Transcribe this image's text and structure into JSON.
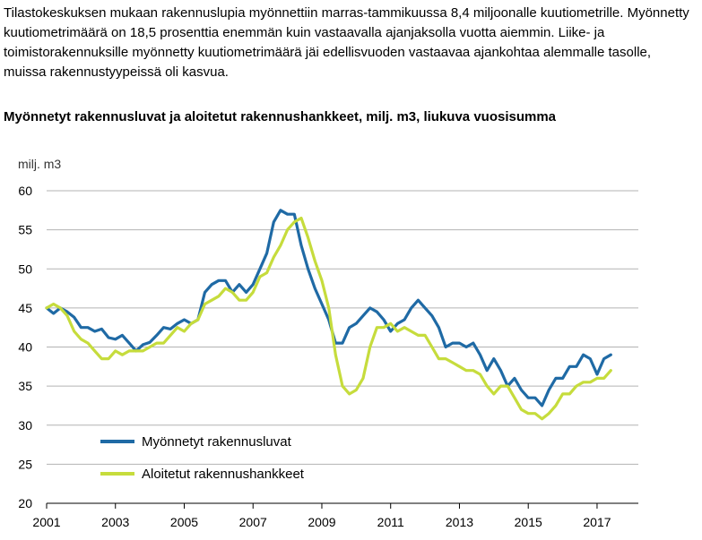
{
  "article": {
    "intro_text": "Tilastokeskuksen mukaan rakennuslupia myönnettiin marras-tammikuussa 8,4 miljoonalle kuutiometrille. Myönnetty kuutiometrimäärä on 18,5 prosenttia enemmän kuin vastaavalla ajanjaksolla vuotta aiemmin. Liike- ja toimistorakennuksille myönnetty kuutiometrimäärä jäi edellisvuoden vastaavaa ajankohtaa alemmalle tasolle, muissa rakennustyypeissä oli kasvua.",
    "chart_heading": "Myönnetyt rakennusluvat ja aloitetut rakennushankkeet, milj. m3, liukuva vuosisumma"
  },
  "chart_data": {
    "type": "line",
    "unit_label": "milj. m3",
    "ylim": [
      20,
      60
    ],
    "yticks": [
      20,
      25,
      30,
      35,
      40,
      45,
      50,
      55,
      60
    ],
    "xlim": [
      2001,
      2018.2
    ],
    "xticks": [
      "2001",
      "2003",
      "2005",
      "2007",
      "2009",
      "2011",
      "2013",
      "2015",
      "2017"
    ],
    "grid": "horizontal",
    "legend_position": "bottom-left",
    "series": [
      {
        "name": "Myönnetyt rakennusluvat",
        "color": "#1f6aa5",
        "points": [
          [
            2001.0,
            45.0
          ],
          [
            2001.2,
            44.3
          ],
          [
            2001.4,
            45.0
          ],
          [
            2001.6,
            44.5
          ],
          [
            2001.8,
            43.8
          ],
          [
            2002.0,
            42.5
          ],
          [
            2002.2,
            42.5
          ],
          [
            2002.4,
            42.0
          ],
          [
            2002.6,
            42.3
          ],
          [
            2002.8,
            41.2
          ],
          [
            2003.0,
            41.0
          ],
          [
            2003.2,
            41.5
          ],
          [
            2003.4,
            40.5
          ],
          [
            2003.6,
            39.5
          ],
          [
            2003.8,
            40.3
          ],
          [
            2004.0,
            40.6
          ],
          [
            2004.2,
            41.5
          ],
          [
            2004.4,
            42.5
          ],
          [
            2004.6,
            42.3
          ],
          [
            2004.8,
            43.0
          ],
          [
            2005.0,
            43.5
          ],
          [
            2005.2,
            43.0
          ],
          [
            2005.4,
            43.5
          ],
          [
            2005.6,
            47.0
          ],
          [
            2005.8,
            48.0
          ],
          [
            2006.0,
            48.5
          ],
          [
            2006.2,
            48.5
          ],
          [
            2006.4,
            47.0
          ],
          [
            2006.6,
            48.0
          ],
          [
            2006.8,
            47.0
          ],
          [
            2007.0,
            48.0
          ],
          [
            2007.2,
            50.0
          ],
          [
            2007.4,
            52.0
          ],
          [
            2007.6,
            56.0
          ],
          [
            2007.8,
            57.5
          ],
          [
            2008.0,
            57.0
          ],
          [
            2008.2,
            57.0
          ],
          [
            2008.4,
            53.0
          ],
          [
            2008.6,
            50.0
          ],
          [
            2008.8,
            47.5
          ],
          [
            2009.0,
            45.5
          ],
          [
            2009.2,
            43.5
          ],
          [
            2009.4,
            40.5
          ],
          [
            2009.6,
            40.5
          ],
          [
            2009.8,
            42.5
          ],
          [
            2010.0,
            43.0
          ],
          [
            2010.2,
            44.0
          ],
          [
            2010.4,
            45.0
          ],
          [
            2010.6,
            44.5
          ],
          [
            2010.8,
            43.5
          ],
          [
            2011.0,
            42.0
          ],
          [
            2011.2,
            43.0
          ],
          [
            2011.4,
            43.5
          ],
          [
            2011.6,
            45.0
          ],
          [
            2011.8,
            46.0
          ],
          [
            2012.0,
            45.0
          ],
          [
            2012.2,
            44.0
          ],
          [
            2012.4,
            42.5
          ],
          [
            2012.6,
            40.0
          ],
          [
            2012.8,
            40.5
          ],
          [
            2013.0,
            40.5
          ],
          [
            2013.2,
            40.0
          ],
          [
            2013.4,
            40.5
          ],
          [
            2013.6,
            39.0
          ],
          [
            2013.8,
            37.0
          ],
          [
            2014.0,
            38.5
          ],
          [
            2014.2,
            37.0
          ],
          [
            2014.4,
            35.0
          ],
          [
            2014.6,
            36.0
          ],
          [
            2014.8,
            34.5
          ],
          [
            2015.0,
            33.5
          ],
          [
            2015.2,
            33.5
          ],
          [
            2015.4,
            32.5
          ],
          [
            2015.6,
            34.5
          ],
          [
            2015.8,
            36.0
          ],
          [
            2016.0,
            36.0
          ],
          [
            2016.2,
            37.5
          ],
          [
            2016.4,
            37.5
          ],
          [
            2016.6,
            39.0
          ],
          [
            2016.8,
            38.5
          ],
          [
            2017.0,
            36.5
          ],
          [
            2017.2,
            38.5
          ],
          [
            2017.4,
            39.0
          ]
        ]
      },
      {
        "name": "Aloitetut rakennushankkeet",
        "color": "#c6dc3c",
        "points": [
          [
            2001.0,
            45.0
          ],
          [
            2001.2,
            45.5
          ],
          [
            2001.4,
            45.0
          ],
          [
            2001.6,
            44.0
          ],
          [
            2001.8,
            42.0
          ],
          [
            2002.0,
            41.0
          ],
          [
            2002.2,
            40.5
          ],
          [
            2002.4,
            39.5
          ],
          [
            2002.6,
            38.5
          ],
          [
            2002.8,
            38.5
          ],
          [
            2003.0,
            39.5
          ],
          [
            2003.2,
            39.0
          ],
          [
            2003.4,
            39.5
          ],
          [
            2003.6,
            39.5
          ],
          [
            2003.8,
            39.5
          ],
          [
            2004.0,
            40.0
          ],
          [
            2004.2,
            40.5
          ],
          [
            2004.4,
            40.5
          ],
          [
            2004.6,
            41.5
          ],
          [
            2004.8,
            42.5
          ],
          [
            2005.0,
            42.0
          ],
          [
            2005.2,
            43.0
          ],
          [
            2005.4,
            43.5
          ],
          [
            2005.6,
            45.5
          ],
          [
            2005.8,
            46.0
          ],
          [
            2006.0,
            46.5
          ],
          [
            2006.2,
            47.5
          ],
          [
            2006.4,
            47.0
          ],
          [
            2006.6,
            46.0
          ],
          [
            2006.8,
            46.0
          ],
          [
            2007.0,
            47.0
          ],
          [
            2007.2,
            49.0
          ],
          [
            2007.4,
            49.5
          ],
          [
            2007.6,
            51.5
          ],
          [
            2007.8,
            53.0
          ],
          [
            2008.0,
            55.0
          ],
          [
            2008.2,
            56.0
          ],
          [
            2008.4,
            56.5
          ],
          [
            2008.6,
            54.0
          ],
          [
            2008.8,
            51.0
          ],
          [
            2009.0,
            48.5
          ],
          [
            2009.2,
            45.0
          ],
          [
            2009.4,
            39.0
          ],
          [
            2009.6,
            35.0
          ],
          [
            2009.8,
            34.0
          ],
          [
            2010.0,
            34.5
          ],
          [
            2010.2,
            36.0
          ],
          [
            2010.4,
            40.0
          ],
          [
            2010.6,
            42.5
          ],
          [
            2010.8,
            42.5
          ],
          [
            2011.0,
            43.0
          ],
          [
            2011.2,
            42.0
          ],
          [
            2011.4,
            42.5
          ],
          [
            2011.6,
            42.0
          ],
          [
            2011.8,
            41.5
          ],
          [
            2012.0,
            41.5
          ],
          [
            2012.2,
            40.0
          ],
          [
            2012.4,
            38.5
          ],
          [
            2012.6,
            38.5
          ],
          [
            2012.8,
            38.0
          ],
          [
            2013.0,
            37.5
          ],
          [
            2013.2,
            37.0
          ],
          [
            2013.4,
            37.0
          ],
          [
            2013.6,
            36.5
          ],
          [
            2013.8,
            35.0
          ],
          [
            2014.0,
            34.0
          ],
          [
            2014.2,
            35.0
          ],
          [
            2014.4,
            35.0
          ],
          [
            2014.6,
            33.5
          ],
          [
            2014.8,
            32.0
          ],
          [
            2015.0,
            31.5
          ],
          [
            2015.2,
            31.5
          ],
          [
            2015.4,
            30.8
          ],
          [
            2015.6,
            31.5
          ],
          [
            2015.8,
            32.5
          ],
          [
            2016.0,
            34.0
          ],
          [
            2016.2,
            34.0
          ],
          [
            2016.4,
            35.0
          ],
          [
            2016.6,
            35.5
          ],
          [
            2016.8,
            35.5
          ],
          [
            2017.0,
            36.0
          ],
          [
            2017.2,
            36.0
          ],
          [
            2017.4,
            37.0
          ]
        ]
      }
    ]
  }
}
